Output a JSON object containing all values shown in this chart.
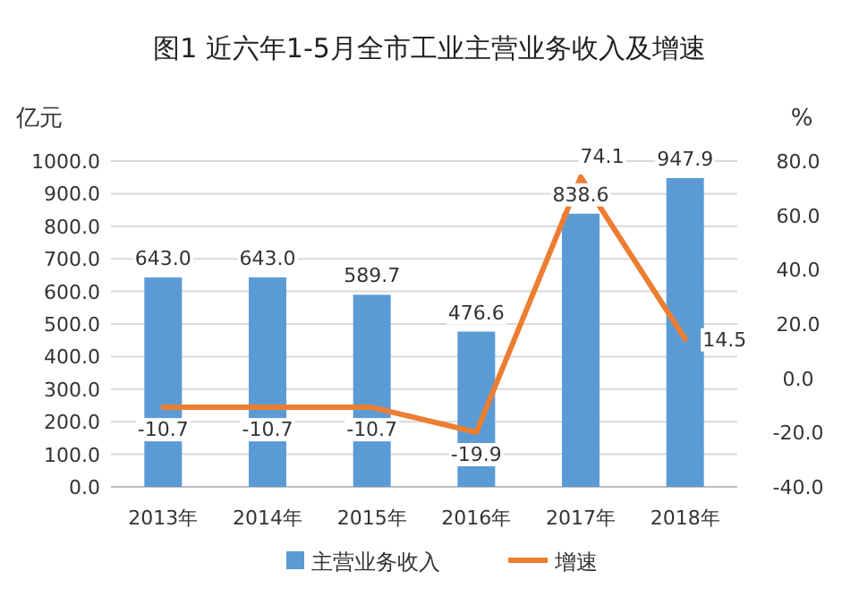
{
  "chart_data": {
    "type": "bar",
    "title": "图1  近六年1-5月全市工业主营业务收入及增速",
    "ylabel": "亿元",
    "y2label": "%",
    "categories": [
      "2013年",
      "2014年",
      "2015年",
      "2016年",
      "2017年",
      "2018年"
    ],
    "series": [
      {
        "name": "主营业务收入",
        "color": "#5b9bd5",
        "values": [
          643.0,
          643.0,
          589.7,
          476.6,
          838.6,
          947.9
        ],
        "value_labels": [
          "643.0",
          "643.0",
          "589.7",
          "476.6",
          "838.6",
          "947.9"
        ]
      },
      {
        "name": "增速",
        "type": "line",
        "axis": "y2",
        "color": "#ed7d31",
        "values": [
          -10.7,
          -10.7,
          -10.7,
          -19.9,
          74.1,
          14.5
        ],
        "value_labels": [
          "-10.7",
          "-10.7",
          "-10.7",
          "-19.9",
          "74.1",
          "14.5"
        ]
      }
    ],
    "ylim": [
      0,
      1000
    ],
    "yticks": [
      {
        "value": 0,
        "label": "0.0"
      },
      {
        "value": 100,
        "label": "100.0"
      },
      {
        "value": 200,
        "label": "200.0"
      },
      {
        "value": 300,
        "label": "300.0"
      },
      {
        "value": 400,
        "label": "400.0"
      },
      {
        "value": 500,
        "label": "500.0"
      },
      {
        "value": 600,
        "label": "600.0"
      },
      {
        "value": 700,
        "label": "700.0"
      },
      {
        "value": 800,
        "label": "800.0"
      },
      {
        "value": 900,
        "label": "900.0"
      },
      {
        "value": 1000,
        "label": "1000.0"
      }
    ],
    "y2lim": [
      -40,
      80
    ],
    "y2ticks": [
      {
        "value": -40,
        "label": "-40.0"
      },
      {
        "value": -20,
        "label": "-20.0"
      },
      {
        "value": 0,
        "label": "0.0"
      },
      {
        "value": 20,
        "label": "20.0"
      },
      {
        "value": 40,
        "label": "40.0"
      },
      {
        "value": 60,
        "label": "60.0"
      },
      {
        "value": 80,
        "label": "80.0"
      }
    ],
    "grid": "y",
    "legend": "bottom",
    "marker": "none",
    "line_style": "solid"
  }
}
